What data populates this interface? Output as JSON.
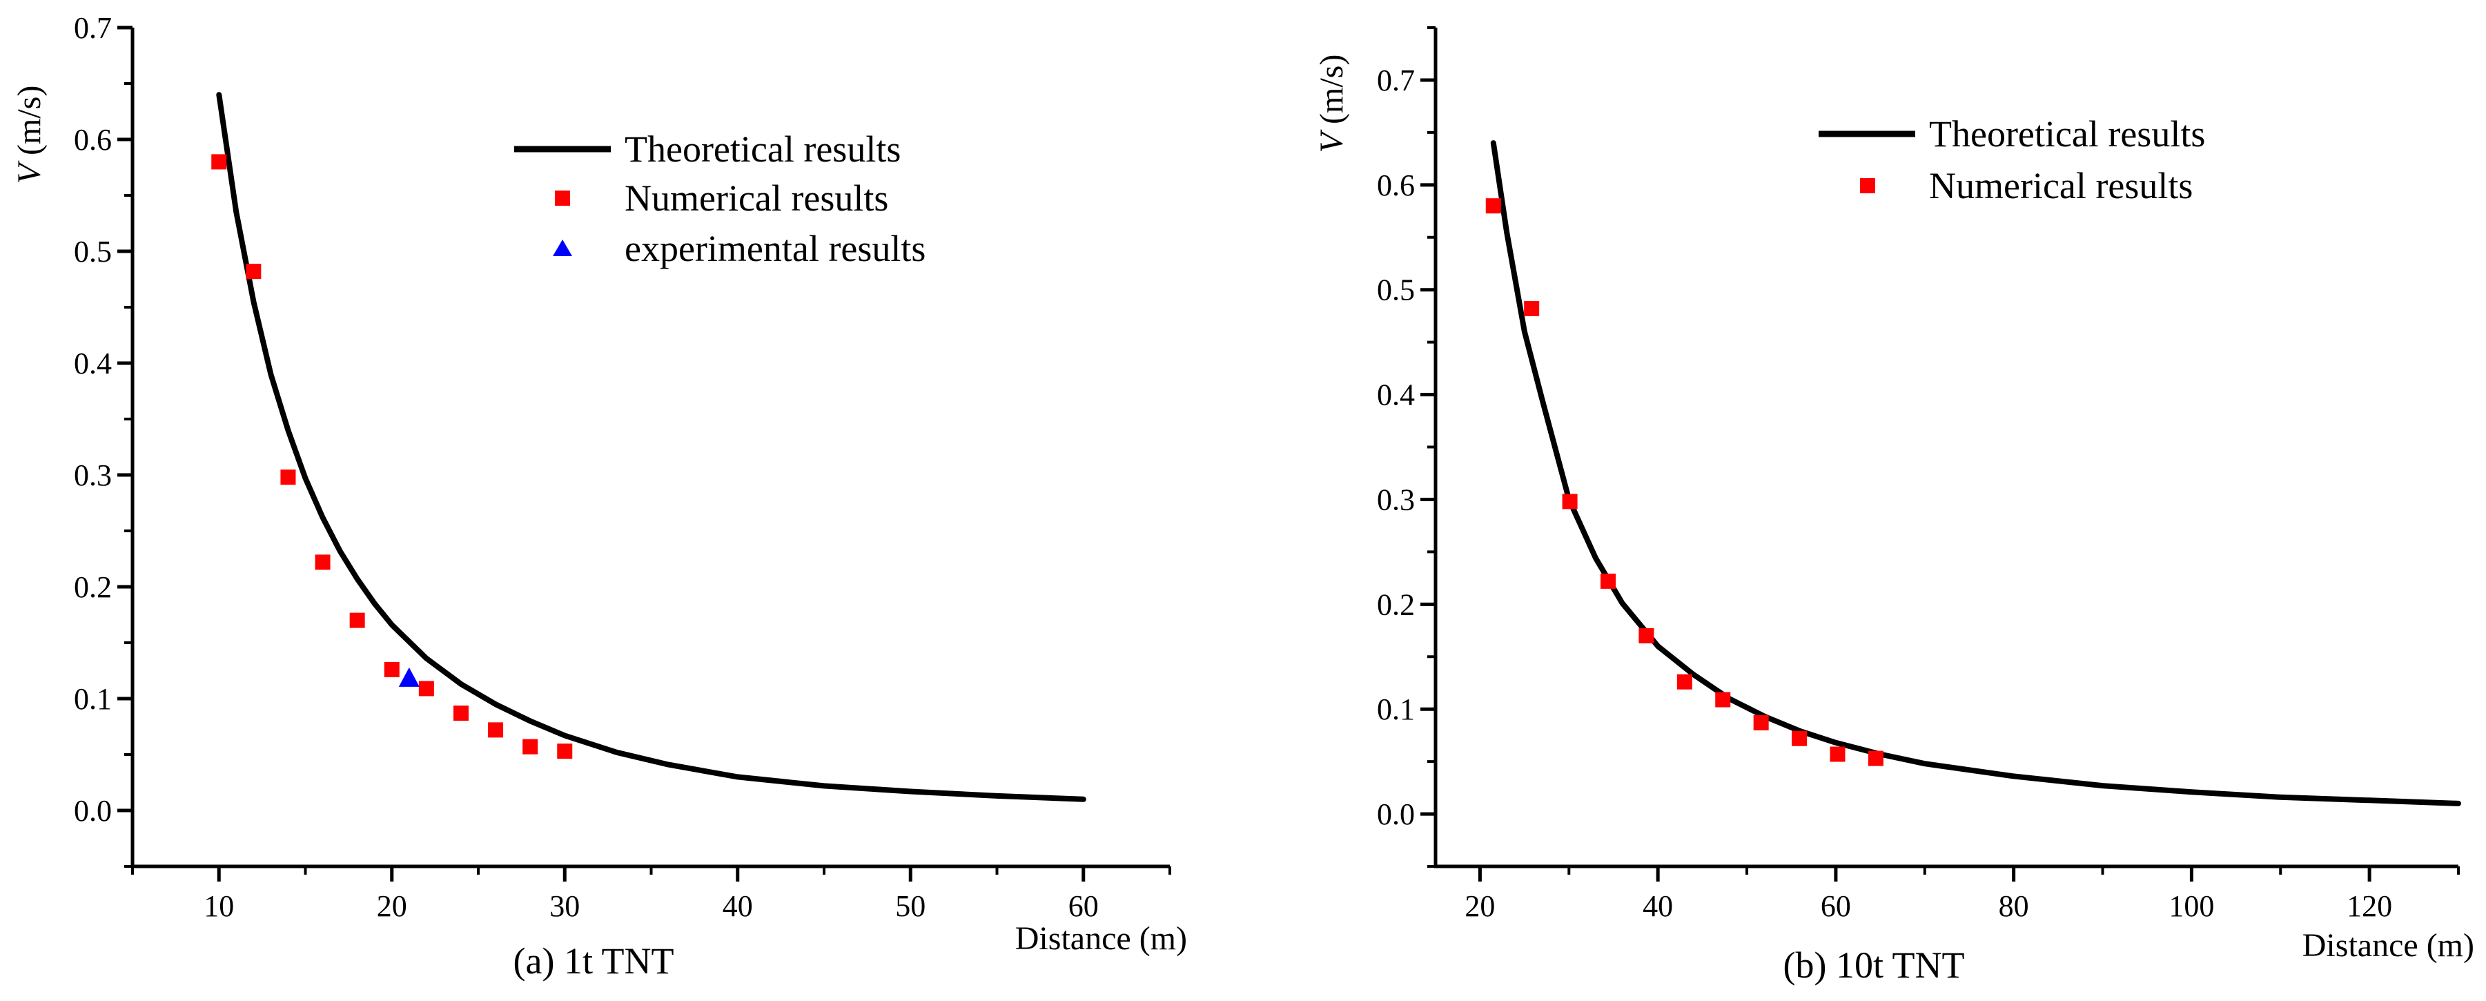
{
  "chart_data": [
    {
      "type": "line",
      "caption": "(a) 1t TNT",
      "xlabel": "Distance (m)",
      "ylabel_var": "V",
      "ylabel_unit": " (m/s)",
      "xlim": [
        5,
        65
      ],
      "ylim": [
        -0.05,
        0.7
      ],
      "xticks": [
        10,
        20,
        30,
        40,
        50,
        60
      ],
      "xtick_labels": [
        "10",
        "20",
        "30",
        "40",
        "50",
        "60"
      ],
      "yticks": [
        0.0,
        0.1,
        0.2,
        0.3,
        0.4,
        0.5,
        0.6,
        0.7
      ],
      "ytick_labels": [
        "0.0",
        "0.1",
        "0.2",
        "0.3",
        "0.4",
        "0.5",
        "0.6",
        "0.7"
      ],
      "legend": [
        "Theoretical results",
        "Numerical results",
        "experimental results"
      ],
      "series": [
        {
          "name": "Theoretical results",
          "kind": "line",
          "color": "#000000",
          "x": [
            10,
            11,
            12,
            13,
            14,
            15,
            16,
            17,
            18,
            19,
            20,
            22,
            24,
            26,
            28,
            30,
            33,
            36,
            40,
            45,
            50,
            55,
            60
          ],
          "y": [
            0.64,
            0.535,
            0.455,
            0.39,
            0.34,
            0.297,
            0.262,
            0.232,
            0.207,
            0.185,
            0.166,
            0.136,
            0.113,
            0.095,
            0.08,
            0.067,
            0.052,
            0.041,
            0.03,
            0.022,
            0.017,
            0.013,
            0.01
          ]
        },
        {
          "name": "Numerical results",
          "kind": "square",
          "color": "#ff0000",
          "x": [
            10,
            12,
            14,
            16,
            18,
            20,
            22,
            24,
            26,
            28,
            30
          ],
          "y": [
            0.58,
            0.482,
            0.298,
            0.222,
            0.17,
            0.126,
            0.109,
            0.087,
            0.072,
            0.057,
            0.053
          ]
        },
        {
          "name": "experimental results",
          "kind": "triangle",
          "color": "#0000ff",
          "x": [
            21
          ],
          "y": [
            0.118
          ]
        }
      ]
    },
    {
      "type": "line",
      "caption": "(b) 10t TNT",
      "xlabel": "Distance (m)",
      "ylabel_var": "V",
      "ylabel_unit": " (m/s)",
      "xlim": [
        15,
        130
      ],
      "ylim": [
        -0.05,
        0.75
      ],
      "xticks": [
        20,
        40,
        60,
        80,
        100,
        120
      ],
      "xtick_labels": [
        "20",
        "40",
        "60",
        "80",
        "100",
        "120"
      ],
      "yticks": [
        0.0,
        0.1,
        0.2,
        0.3,
        0.4,
        0.5,
        0.6,
        0.7
      ],
      "ytick_labels": [
        "0.0",
        "0.1",
        "0.2",
        "0.3",
        "0.4",
        "0.5",
        "0.6",
        "0.7"
      ],
      "legend": [
        "Theoretical results",
        "Numerical results"
      ],
      "series": [
        {
          "name": "Theoretical results",
          "kind": "line",
          "color": "#000000",
          "x": [
            21.5,
            23,
            25,
            27,
            30,
            33,
            36,
            40,
            44,
            48,
            52,
            56,
            60,
            65,
            70,
            80,
            90,
            100,
            110,
            120,
            130
          ],
          "y": [
            0.64,
            0.555,
            0.46,
            0.395,
            0.3,
            0.244,
            0.201,
            0.16,
            0.133,
            0.11,
            0.093,
            0.079,
            0.068,
            0.057,
            0.048,
            0.036,
            0.027,
            0.021,
            0.016,
            0.013,
            0.01
          ]
        },
        {
          "name": "Numerical results",
          "kind": "square",
          "color": "#ff0000",
          "x": [
            21.5,
            25.8,
            30.1,
            34.4,
            38.7,
            43.0,
            47.3,
            51.6,
            55.9,
            60.2,
            64.5
          ],
          "y": [
            0.58,
            0.482,
            0.298,
            0.222,
            0.17,
            0.126,
            0.109,
            0.087,
            0.072,
            0.057,
            0.053
          ]
        }
      ]
    }
  ]
}
